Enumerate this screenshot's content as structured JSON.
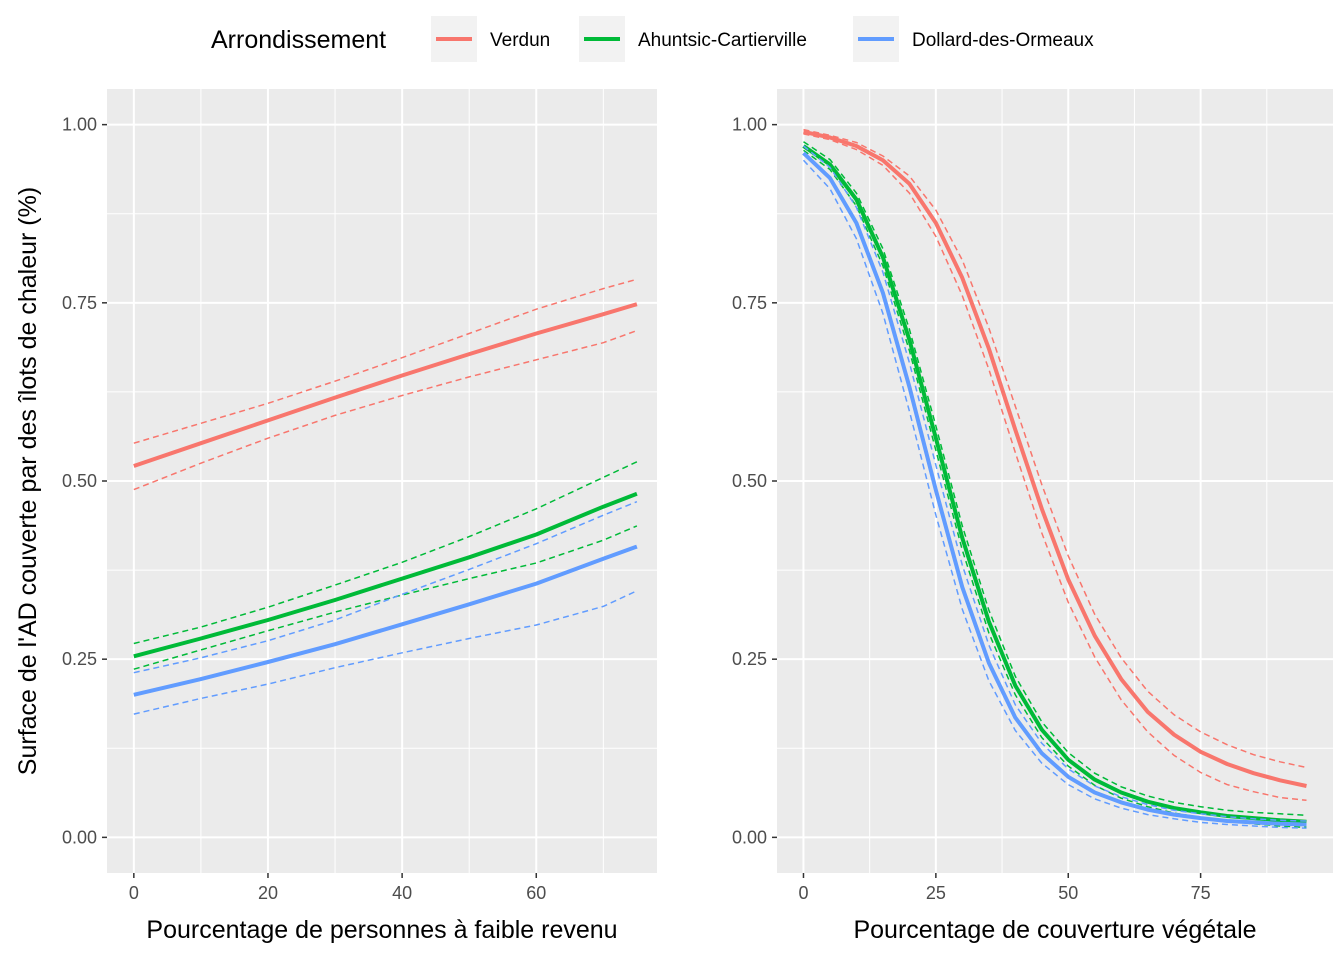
{
  "colors": {
    "panel_bg": "#EBEBEB",
    "grid": "#FFFFFF",
    "tick_text": "#4D4D4D",
    "tick_mark": "#333333"
  },
  "legend": {
    "title": "Arrondissement",
    "position": "top",
    "items": [
      {
        "label": "Verdun",
        "color": "#F8766D"
      },
      {
        "label": "Ahuntsic-Cartierville",
        "color": "#00BA38"
      },
      {
        "label": "Dollard-des-Ormeaux",
        "color": "#619CFF"
      }
    ]
  },
  "y_title": "Surface de l'AD couverte par des îlots de chaleur (%)",
  "chart_data": [
    {
      "type": "line",
      "xlabel": "Pourcentage de personnes à faible revenu",
      "ylabel": "Surface de l'AD couverte par des îlots de chaleur (%)",
      "xlim": [
        -4,
        78
      ],
      "ylim": [
        -0.05,
        1.05
      ],
      "xticks": [
        0,
        20,
        40,
        60
      ],
      "xtick_labels": [
        "0",
        "20",
        "40",
        "60"
      ],
      "yticks": [
        0,
        0.25,
        0.5,
        0.75,
        1.0
      ],
      "ytick_labels": [
        "0.00",
        "0.25",
        "0.50",
        "0.75",
        "1.00"
      ],
      "x": [
        0,
        10,
        20,
        30,
        40,
        50,
        60,
        70,
        75
      ],
      "series": [
        {
          "name": "Verdun",
          "color": "#F8766D",
          "values": [
            0.521,
            0.553,
            0.585,
            0.617,
            0.648,
            0.678,
            0.707,
            0.734,
            0.748
          ],
          "lower": [
            0.488,
            0.525,
            0.56,
            0.592,
            0.62,
            0.646,
            0.67,
            0.694,
            0.711
          ],
          "upper": [
            0.553,
            0.581,
            0.609,
            0.64,
            0.673,
            0.707,
            0.741,
            0.77,
            0.783
          ]
        },
        {
          "name": "Ahuntsic-Cartierville",
          "color": "#00BA38",
          "values": [
            0.254,
            0.279,
            0.305,
            0.333,
            0.363,
            0.393,
            0.425,
            0.464,
            0.482
          ],
          "lower": [
            0.236,
            0.263,
            0.29,
            0.316,
            0.34,
            0.363,
            0.385,
            0.417,
            0.437
          ],
          "upper": [
            0.272,
            0.295,
            0.323,
            0.354,
            0.386,
            0.422,
            0.461,
            0.505,
            0.527
          ]
        },
        {
          "name": "Dollard-des-Ormeaux",
          "color": "#619CFF",
          "values": [
            0.2,
            0.222,
            0.246,
            0.271,
            0.299,
            0.327,
            0.356,
            0.391,
            0.408
          ],
          "lower": [
            0.173,
            0.195,
            0.215,
            0.238,
            0.259,
            0.279,
            0.298,
            0.324,
            0.346
          ],
          "upper": [
            0.231,
            0.252,
            0.276,
            0.305,
            0.341,
            0.376,
            0.412,
            0.452,
            0.471
          ]
        }
      ]
    },
    {
      "type": "line",
      "xlabel": "Pourcentage de couverture végétale",
      "ylabel": "",
      "xlim": [
        -5,
        100
      ],
      "ylim": [
        -0.05,
        1.05
      ],
      "xticks": [
        0,
        25,
        50,
        75
      ],
      "xtick_labels": [
        "0",
        "25",
        "50",
        "75"
      ],
      "yticks": [
        0,
        0.25,
        0.5,
        0.75,
        1.0
      ],
      "ytick_labels": [
        "0.00",
        "0.25",
        "0.50",
        "0.75",
        "1.00"
      ],
      "x": [
        0,
        5,
        10,
        15,
        20,
        25,
        30,
        35,
        40,
        45,
        50,
        55,
        60,
        65,
        70,
        75,
        80,
        85,
        90,
        95
      ],
      "series": [
        {
          "name": "Verdun",
          "color": "#F8766D",
          "values": [
            0.99,
            0.982,
            0.97,
            0.95,
            0.917,
            0.862,
            0.785,
            0.686,
            0.572,
            0.461,
            0.362,
            0.283,
            0.222,
            0.176,
            0.144,
            0.12,
            0.103,
            0.09,
            0.08,
            0.072
          ],
          "lower": [
            0.987,
            0.979,
            0.965,
            0.943,
            0.904,
            0.843,
            0.76,
            0.657,
            0.54,
            0.427,
            0.33,
            0.253,
            0.193,
            0.148,
            0.115,
            0.091,
            0.074,
            0.064,
            0.056,
            0.052
          ],
          "upper": [
            0.993,
            0.985,
            0.975,
            0.956,
            0.928,
            0.88,
            0.81,
            0.715,
            0.605,
            0.495,
            0.395,
            0.313,
            0.252,
            0.205,
            0.172,
            0.148,
            0.13,
            0.116,
            0.106,
            0.098
          ]
        },
        {
          "name": "Ahuntsic-Cartierville",
          "color": "#00BA38",
          "values": [
            0.97,
            0.944,
            0.895,
            0.814,
            0.698,
            0.56,
            0.42,
            0.303,
            0.213,
            0.151,
            0.109,
            0.081,
            0.063,
            0.05,
            0.041,
            0.035,
            0.03,
            0.027,
            0.024,
            0.022
          ],
          "lower": [
            0.964,
            0.937,
            0.886,
            0.802,
            0.683,
            0.543,
            0.403,
            0.287,
            0.2,
            0.14,
            0.1,
            0.073,
            0.055,
            0.043,
            0.034,
            0.028,
            0.023,
            0.019,
            0.016,
            0.014
          ],
          "upper": [
            0.976,
            0.951,
            0.904,
            0.826,
            0.713,
            0.577,
            0.437,
            0.319,
            0.226,
            0.162,
            0.119,
            0.09,
            0.071,
            0.058,
            0.049,
            0.043,
            0.038,
            0.035,
            0.033,
            0.031
          ]
        },
        {
          "name": "Dollard-des-Ormeaux",
          "color": "#619CFF",
          "values": [
            0.96,
            0.925,
            0.862,
            0.764,
            0.632,
            0.487,
            0.351,
            0.245,
            0.168,
            0.118,
            0.085,
            0.063,
            0.049,
            0.039,
            0.032,
            0.027,
            0.023,
            0.021,
            0.019,
            0.018
          ],
          "lower": [
            0.95,
            0.91,
            0.84,
            0.735,
            0.598,
            0.452,
            0.32,
            0.22,
            0.15,
            0.104,
            0.074,
            0.054,
            0.041,
            0.032,
            0.026,
            0.021,
            0.018,
            0.016,
            0.014,
            0.013
          ],
          "upper": [
            0.97,
            0.94,
            0.884,
            0.793,
            0.666,
            0.522,
            0.382,
            0.27,
            0.186,
            0.132,
            0.096,
            0.072,
            0.057,
            0.046,
            0.038,
            0.033,
            0.029,
            0.026,
            0.024,
            0.023
          ]
        }
      ]
    }
  ]
}
